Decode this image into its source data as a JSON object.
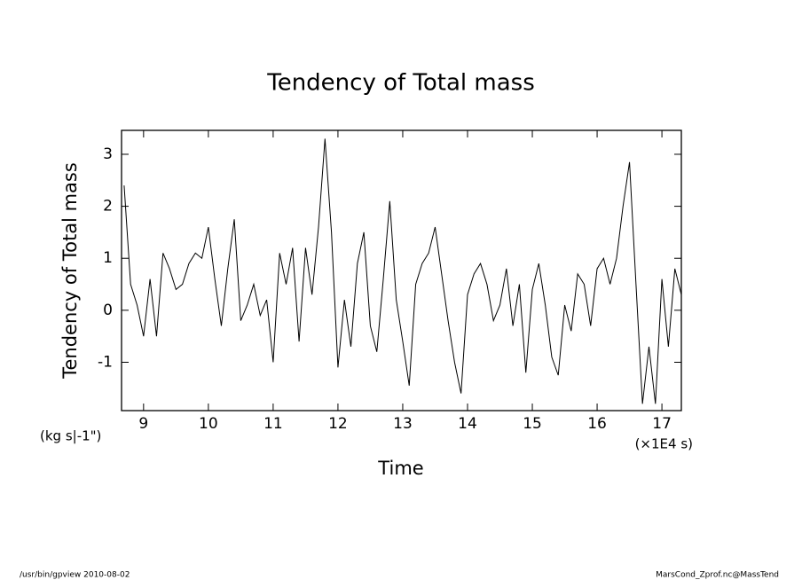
{
  "chart_data": {
    "type": "line",
    "title": "Tendency of Total mass",
    "y_label": "Tendency of Total mass",
    "y_units": "(kg s|-1\")",
    "x_label": "Time",
    "x_units": "(×1E4 s)",
    "footer_left": "/usr/bin/gpview  2010-08-02",
    "footer_right": "MarsCond_Zprof.nc@MassTend",
    "xlim": [
      8.66,
      17.3
    ],
    "ylim": [
      -1.93,
      3.46
    ],
    "xticks": [
      9,
      10,
      11,
      12,
      13,
      14,
      15,
      16,
      17
    ],
    "yticks": [
      -1,
      0,
      1,
      2,
      3
    ],
    "color": "#000000",
    "x": [
      8.7,
      8.8,
      8.9,
      9.0,
      9.1,
      9.2,
      9.3,
      9.4,
      9.5,
      9.6,
      9.7,
      9.8,
      9.9,
      10.0,
      10.1,
      10.2,
      10.3,
      10.4,
      10.5,
      10.6,
      10.7,
      10.8,
      10.9,
      11.0,
      11.1,
      11.2,
      11.3,
      11.4,
      11.5,
      11.6,
      11.7,
      11.8,
      11.9,
      12.0,
      12.1,
      12.2,
      12.3,
      12.4,
      12.5,
      12.6,
      12.7,
      12.8,
      12.9,
      13.0,
      13.1,
      13.2,
      13.3,
      13.4,
      13.5,
      13.6,
      13.7,
      13.8,
      13.9,
      14.0,
      14.1,
      14.2,
      14.3,
      14.4,
      14.5,
      14.6,
      14.7,
      14.8,
      14.9,
      15.0,
      15.1,
      15.2,
      15.3,
      15.4,
      15.5,
      15.6,
      15.7,
      15.8,
      15.9,
      16.0,
      16.1,
      16.2,
      16.3,
      16.4,
      16.5,
      16.6,
      16.7,
      16.8,
      16.9,
      17.0,
      17.1,
      17.2,
      17.3
    ],
    "values": [
      2.4,
      0.5,
      0.1,
      -0.5,
      0.6,
      -0.5,
      1.1,
      0.8,
      0.4,
      0.5,
      0.9,
      1.1,
      1.0,
      1.6,
      0.6,
      -0.3,
      0.8,
      1.75,
      -0.2,
      0.1,
      0.5,
      -0.1,
      0.2,
      -1.0,
      1.1,
      0.5,
      1.2,
      -0.6,
      1.2,
      0.3,
      1.6,
      3.3,
      1.5,
      -1.1,
      0.2,
      -0.7,
      0.9,
      1.5,
      -0.3,
      -0.8,
      0.6,
      2.1,
      0.2,
      -0.6,
      -1.45,
      0.5,
      0.9,
      1.1,
      1.6,
      0.7,
      -0.2,
      -1.0,
      -1.6,
      0.3,
      0.7,
      0.9,
      0.5,
      -0.2,
      0.1,
      0.8,
      -0.3,
      0.5,
      -1.2,
      0.4,
      0.9,
      0.1,
      -0.9,
      -1.25,
      0.1,
      -0.4,
      0.7,
      0.5,
      -0.3,
      0.8,
      1.0,
      0.5,
      1.0,
      2.0,
      2.85,
      0.5,
      -1.8,
      -0.7,
      -1.8,
      0.6,
      -0.7,
      0.8,
      0.3
    ]
  }
}
